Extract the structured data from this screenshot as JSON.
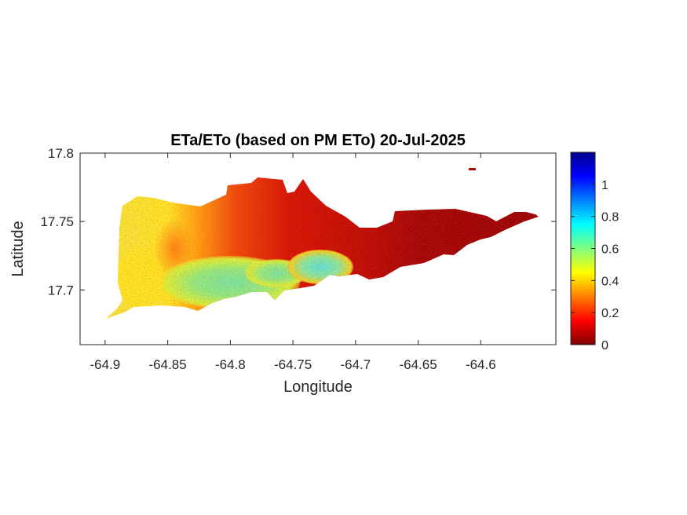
{
  "chart_data": {
    "type": "heatmap",
    "title": "ETa/ETo (based on PM ETo) 20-Jul-2025",
    "xlabel": "Longitude",
    "ylabel": "Latitude",
    "xlim": [
      -64.92,
      -64.54
    ],
    "ylim": [
      17.66,
      17.8
    ],
    "xticks": [
      -64.9,
      -64.85,
      -64.8,
      -64.75,
      -64.7,
      -64.65,
      -64.6
    ],
    "xtick_labels": [
      "-64.9",
      "-64.85",
      "-64.8",
      "-64.75",
      "-64.7",
      "-64.65",
      "-64.6"
    ],
    "yticks": [
      17.7,
      17.75,
      17.8
    ],
    "ytick_labels": [
      "17.7",
      "17.75",
      "17.8"
    ],
    "grid": false,
    "colormap": "jet",
    "colorbar": {
      "range": [
        0,
        1.2
      ],
      "ticks": [
        0,
        0.2,
        0.4,
        0.6,
        0.8,
        1
      ],
      "tick_labels": [
        "0",
        "0.2",
        "0.4",
        "0.6",
        "0.8",
        "1"
      ]
    },
    "regions": [
      {
        "lon": [
          -64.88,
          -64.84
        ],
        "lat": [
          17.69,
          17.765
        ],
        "value": 0.45
      },
      {
        "lon": [
          -64.84,
          -64.79
        ],
        "lat": [
          17.71,
          17.76
        ],
        "value": 0.22
      },
      {
        "lon": [
          -64.79,
          -64.72
        ],
        "lat": [
          17.725,
          17.78
        ],
        "value": 0.1
      },
      {
        "lon": [
          -64.84,
          -64.76
        ],
        "lat": [
          17.69,
          17.72
        ],
        "value": 0.65
      },
      {
        "lon": [
          -64.76,
          -64.72
        ],
        "lat": [
          17.7,
          17.725
        ],
        "value": 0.6
      },
      {
        "lon": [
          -64.72,
          -64.56
        ],
        "lat": [
          17.71,
          17.76
        ],
        "value": 0.05
      }
    ]
  }
}
